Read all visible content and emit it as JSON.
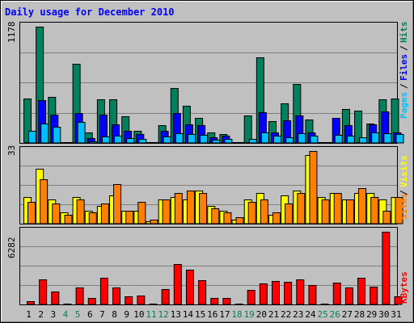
{
  "chart_data": [
    {
      "type": "bar",
      "title": "Daily usage for December 2010",
      "ylabel": "Pages / Files / Hits",
      "ymax_label": "1178",
      "ylim": [
        0,
        1178
      ],
      "categories": [
        "1",
        "2",
        "3",
        "4",
        "5",
        "6",
        "7",
        "8",
        "9",
        "10",
        "11",
        "12",
        "13",
        "14",
        "15",
        "16",
        "17",
        "18",
        "19",
        "20",
        "21",
        "22",
        "23",
        "24",
        "25",
        "26",
        "27",
        "28",
        "29",
        "30",
        "31"
      ],
      "weekend_days": [
        4,
        5,
        11,
        12,
        18,
        19,
        25,
        26
      ],
      "series": [
        {
          "name": "Hits",
          "color": "#00805c",
          "values": [
            450,
            1178,
            470,
            0,
            800,
            110,
            440,
            445,
            270,
            120,
            0,
            180,
            560,
            380,
            255,
            110,
            90,
            0,
            280,
            870,
            220,
            400,
            595,
            240,
            0,
            0,
            345,
            330,
            200,
            445,
            450
          ]
        },
        {
          "name": "Files",
          "color": "#0000ff",
          "values": [
            0,
            430,
            290,
            0,
            300,
            50,
            285,
            190,
            120,
            90,
            0,
            120,
            300,
            190,
            180,
            60,
            70,
            0,
            0,
            310,
            110,
            225,
            280,
            110,
            0,
            255,
            180,
            0,
            190,
            320,
            105
          ]
        },
        {
          "name": "Pages",
          "color": "#00bfff",
          "values": [
            120,
            200,
            160,
            0,
            210,
            20,
            65,
            70,
            50,
            40,
            0,
            65,
            95,
            90,
            85,
            30,
            40,
            0,
            40,
            110,
            70,
            55,
            95,
            75,
            0,
            80,
            75,
            60,
            105,
            100,
            90
          ]
        }
      ]
    },
    {
      "type": "bar",
      "ylabel": "Sites / Visits",
      "ymax_label": "33",
      "ylim": [
        0,
        33
      ],
      "categories": [
        "1",
        "2",
        "3",
        "4",
        "5",
        "6",
        "7",
        "8",
        "9",
        "10",
        "11",
        "12",
        "13",
        "14",
        "15",
        "16",
        "17",
        "18",
        "19",
        "20",
        "21",
        "22",
        "23",
        "24",
        "25",
        "26",
        "27",
        "28",
        "29",
        "30",
        "31"
      ],
      "series": [
        {
          "name": "Visits",
          "color": "#ffff00",
          "values": [
            12,
            25,
            11,
            5,
            12,
            6,
            8,
            13,
            6,
            6,
            1,
            11,
            12,
            11,
            15,
            8,
            6,
            2,
            11,
            14,
            4,
            13,
            15,
            31,
            12,
            14,
            11,
            14,
            14,
            11,
            12
          ]
        },
        {
          "name": "Sites",
          "color": "#ff8000",
          "values": [
            10,
            20,
            9,
            4,
            11,
            5,
            9,
            18,
            6,
            10,
            2,
            11,
            14,
            15,
            14,
            7,
            5,
            3,
            10,
            11,
            5,
            9,
            14,
            33,
            11,
            14,
            11,
            16,
            12,
            6,
            12
          ]
        }
      ]
    },
    {
      "type": "bar",
      "ylabel": "KBytes",
      "ymax_label": "6282",
      "ylim": [
        0,
        6282
      ],
      "categories": [
        "1",
        "2",
        "3",
        "4",
        "5",
        "6",
        "7",
        "8",
        "9",
        "10",
        "11",
        "12",
        "13",
        "14",
        "15",
        "16",
        "17",
        "18",
        "19",
        "20",
        "21",
        "22",
        "23",
        "24",
        "25",
        "26",
        "27",
        "28",
        "29",
        "30",
        "31"
      ],
      "series": [
        {
          "name": "KBytes",
          "color": "#ff0000",
          "values": [
            280,
            2150,
            1110,
            0,
            1480,
            560,
            2330,
            1460,
            700,
            760,
            0,
            1320,
            3470,
            3010,
            2090,
            580,
            560,
            0,
            1230,
            1800,
            2000,
            1940,
            2150,
            1700,
            0,
            1850,
            1470,
            2300,
            1560,
            6282,
            700
          ]
        }
      ]
    }
  ]
}
